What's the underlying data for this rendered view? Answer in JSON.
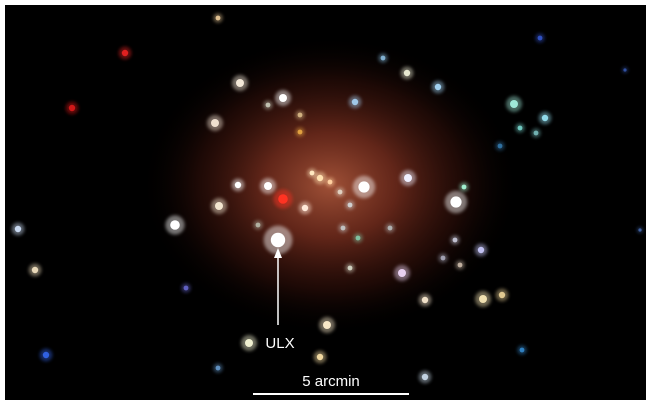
{
  "labels": {
    "ulx": "ULX",
    "scale_bar": "5 arcmin"
  }
}
